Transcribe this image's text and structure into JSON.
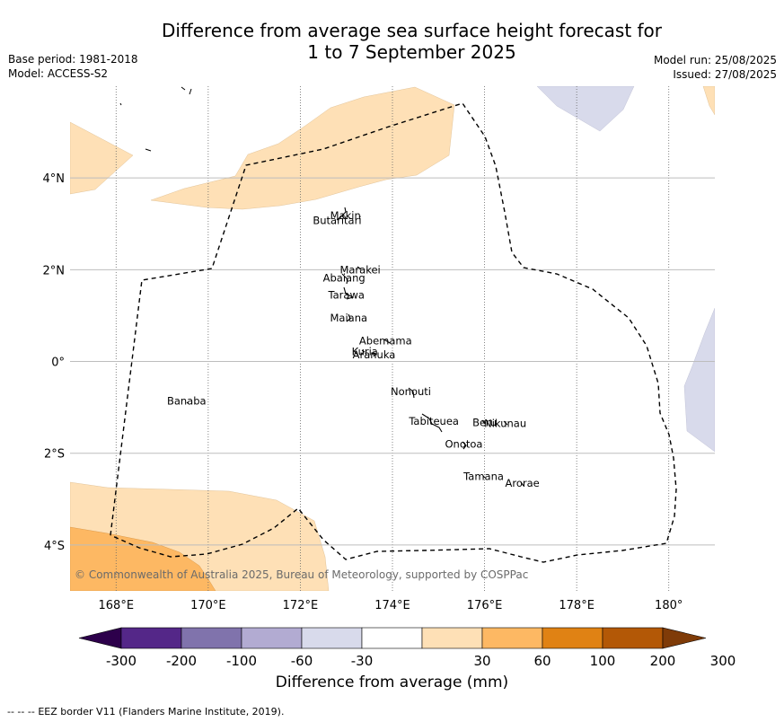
{
  "header": {
    "title_line1": "Difference from average sea surface height forecast for",
    "title_line2": "1 to 7 September 2025",
    "base_period": "Base period: 1981-2018",
    "model": "Model: ACCESS-S2",
    "model_run": "Model run: 25/08/2025",
    "issued": "Issued: 27/08/2025"
  },
  "map": {
    "lon_range": [
      167.0,
      181.0
    ],
    "lat_range": [
      -5.0,
      6.0
    ],
    "lon_ticks": [
      {
        "value": 168,
        "label": "168°E"
      },
      {
        "value": 170,
        "label": "170°E"
      },
      {
        "value": 172,
        "label": "172°E"
      },
      {
        "value": 174,
        "label": "174°E"
      },
      {
        "value": 176,
        "label": "176°E"
      },
      {
        "value": 178,
        "label": "178°E"
      },
      {
        "value": 180,
        "label": "180°"
      }
    ],
    "lat_ticks": [
      {
        "value": 4,
        "label": "4°N"
      },
      {
        "value": 2,
        "label": "2°N"
      },
      {
        "value": 0,
        "label": "0°"
      },
      {
        "value": -2,
        "label": "2°S"
      },
      {
        "value": -4,
        "label": "4°S"
      }
    ],
    "islands": [
      {
        "name": "Makin",
        "lon": 172.98,
        "lat": 3.18
      },
      {
        "name": "Butaritari",
        "lon": 172.8,
        "lat": 3.07
      },
      {
        "name": "Marakei",
        "lon": 173.3,
        "lat": 2.0
      },
      {
        "name": "Abaiang",
        "lon": 172.95,
        "lat": 1.82
      },
      {
        "name": "Tarawa",
        "lon": 173.0,
        "lat": 1.45
      },
      {
        "name": "Maiana",
        "lon": 173.05,
        "lat": 0.95
      },
      {
        "name": "Abemama",
        "lon": 173.85,
        "lat": 0.45
      },
      {
        "name": "Kuria",
        "lon": 173.4,
        "lat": 0.22
      },
      {
        "name": "Aranuka",
        "lon": 173.6,
        "lat": 0.15
      },
      {
        "name": "Nonouti",
        "lon": 174.4,
        "lat": -0.65
      },
      {
        "name": "Banaba",
        "lon": 169.53,
        "lat": -0.86
      },
      {
        "name": "Tabiteuea",
        "lon": 174.9,
        "lat": -1.3
      },
      {
        "name": "Beru",
        "lon": 176.0,
        "lat": -1.33
      },
      {
        "name": "Nikunau",
        "lon": 176.45,
        "lat": -1.35
      },
      {
        "name": "Onotoa",
        "lon": 175.55,
        "lat": -1.8
      },
      {
        "name": "Tamana",
        "lon": 175.98,
        "lat": -2.5
      },
      {
        "name": "Arorae",
        "lon": 176.82,
        "lat": -2.65
      }
    ],
    "copyright": "© Commonwealth of Australia 2025, Bureau of Meteorology, supported by COSPPac"
  },
  "colorbar": {
    "title": "Difference from average (mm)",
    "bins": [
      {
        "color": "#2d004b"
      },
      {
        "color": "#542788"
      },
      {
        "color": "#8073ac"
      },
      {
        "color": "#b2abd2"
      },
      {
        "color": "#d8daeb"
      },
      {
        "color": "#ffffff"
      },
      {
        "color": "#fee0b6"
      },
      {
        "color": "#fdb863"
      },
      {
        "color": "#e08214"
      },
      {
        "color": "#b35806"
      },
      {
        "color": "#7f3b08"
      }
    ],
    "labels": [
      "-300",
      "-200",
      "-100",
      "-60",
      "-30",
      "30",
      "60",
      "100",
      "200",
      "300"
    ]
  },
  "footer": {
    "legend_symbol": "--  --  --",
    "legend_text": "EEZ border V11 (Flanders Marine Institute, 2019)."
  }
}
